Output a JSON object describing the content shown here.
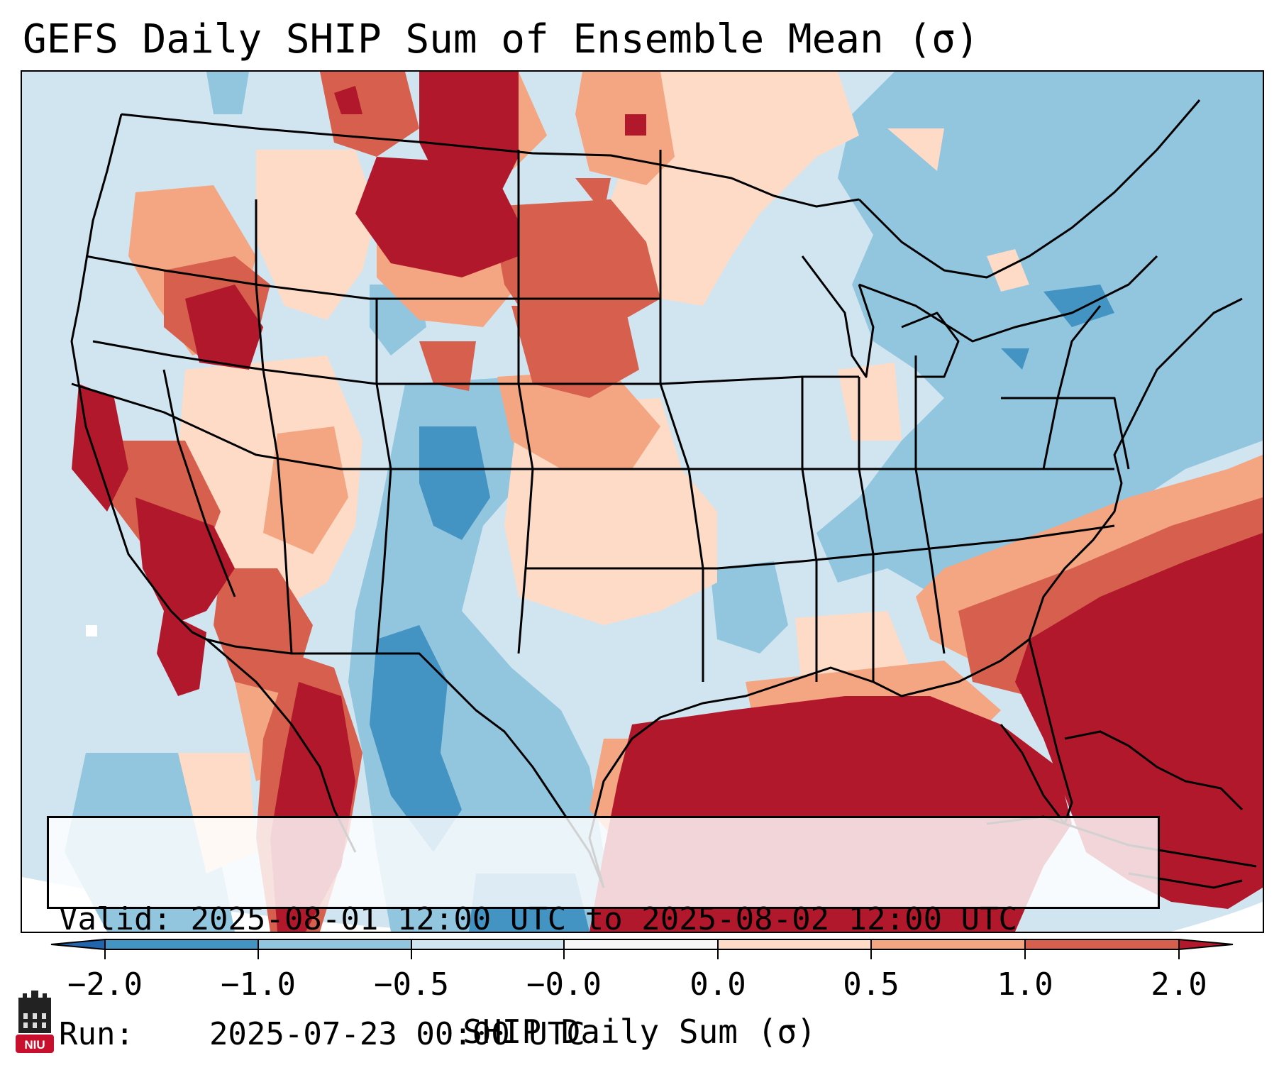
{
  "title": "GEFS Daily SHIP Sum of Ensemble Mean (σ)",
  "valid_label": "Valid:",
  "valid_text": "2025-08-01 12:00 UTC to 2025-08-02 12:00 UTC",
  "run_label": "Run:",
  "run_text": "2025-07-23 00:00 UTC",
  "colorbar": {
    "label": "SHIP Daily Sum (σ)",
    "tick_labels": [
      "−2.0",
      "−1.0",
      "−0.5",
      "−0.0",
      "0.0",
      "0.5",
      "1.0",
      "2.0"
    ],
    "bins": [
      {
        "color": "#2166ac"
      },
      {
        "color": "#4393c3"
      },
      {
        "color": "#92c5de"
      },
      {
        "color": "#d1e5f0"
      },
      {
        "color": "#f7f7f7"
      },
      {
        "color": "#fddbc7"
      },
      {
        "color": "#f4a582"
      },
      {
        "color": "#d6604d"
      },
      {
        "color": "#b2182b"
      }
    ]
  },
  "logo": {
    "text": "NIU",
    "icon": "niu-university-logo-icon",
    "color": "#c8102e"
  },
  "colors": {
    "ocean_background": "#d1e5f0",
    "coastline": "#000000",
    "strong_positive": "#b2182b",
    "moderate_positive": "#d6604d",
    "weak_positive": "#f4a582",
    "slight_positive": "#fddbc7",
    "near_zero": "#d1e5f0",
    "weak_negative": "#92c5de",
    "moderate_negative": "#4393c3"
  }
}
